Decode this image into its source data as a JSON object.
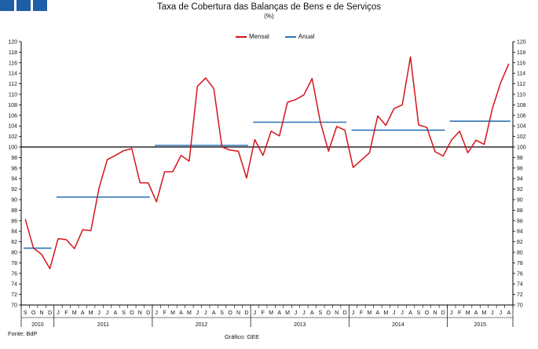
{
  "title": "Taxa de Cobertura das Balanças de Bens e de Serviços",
  "subtitle": "(%)",
  "source": "Fonte: BdP",
  "credit": "Gráfico: GEE",
  "colors": {
    "mensal": "#d4141c",
    "anual": "#2e75b6",
    "baseline": "#000000",
    "logo": "#1f5fa8"
  },
  "chart_data": {
    "type": "line",
    "title": "Taxa de Cobertura das Balanças de Bens e de Serviços",
    "subtitle": "(%)",
    "ylim": [
      70,
      120
    ],
    "ytick_step": 2,
    "reference_line": 100,
    "grid": false,
    "legend_position": "top-center",
    "month_labels": [
      "S",
      "O",
      "N",
      "D",
      "J",
      "F",
      "M",
      "A",
      "M",
      "J",
      "J",
      "A",
      "S",
      "O",
      "N",
      "D",
      "J",
      "F",
      "M",
      "A",
      "M",
      "J",
      "J",
      "A",
      "S",
      "O",
      "N",
      "D",
      "J",
      "F",
      "M",
      "A",
      "M",
      "J",
      "J",
      "A",
      "S",
      "O",
      "N",
      "D",
      "J",
      "F",
      "M",
      "A",
      "M",
      "J",
      "J",
      "A",
      "S",
      "O",
      "N",
      "D",
      "J",
      "F",
      "M",
      "A",
      "M",
      "J",
      "J",
      "A"
    ],
    "years": [
      {
        "label": "2010",
        "start": 0,
        "count": 4
      },
      {
        "label": "2011",
        "start": 4,
        "count": 12
      },
      {
        "label": "2012",
        "start": 16,
        "count": 12
      },
      {
        "label": "2013",
        "start": 28,
        "count": 12
      },
      {
        "label": "2014",
        "start": 40,
        "count": 12
      },
      {
        "label": "2015",
        "start": 52,
        "count": 8
      }
    ],
    "series": [
      {
        "name": "Mensal",
        "values": [
          86.3,
          80.8,
          79.6,
          76.9,
          82.6,
          82.4,
          80.7,
          84.3,
          84.1,
          92.2,
          97.6,
          98.4,
          99.3,
          99.7,
          93.2,
          93.2,
          89.6,
          95.3,
          95.3,
          98.4,
          97.3,
          111.5,
          113.1,
          111.1,
          100.0,
          99.4,
          99.2,
          94.1,
          101.4,
          98.4,
          103.0,
          102.1,
          108.5,
          109.0,
          109.9,
          113.0,
          104.8,
          99.2,
          103.9,
          103.2,
          96.1,
          97.5,
          98.9,
          105.9,
          104.1,
          107.3,
          108.0,
          117.1,
          104.2,
          103.7,
          99.1,
          98.3,
          101.3,
          103.0,
          98.9,
          101.3,
          100.5,
          107.3,
          112.2,
          115.8
        ]
      },
      {
        "name": "Anual",
        "segments": [
          {
            "start": 0,
            "end": 3,
            "value": 80.8
          },
          {
            "start": 4,
            "end": 15,
            "value": 90.5
          },
          {
            "start": 16,
            "end": 27,
            "value": 100.3
          },
          {
            "start": 28,
            "end": 39,
            "value": 104.7
          },
          {
            "start": 40,
            "end": 51,
            "value": 103.2
          },
          {
            "start": 52,
            "end": 59,
            "value": 104.9
          }
        ]
      }
    ]
  }
}
